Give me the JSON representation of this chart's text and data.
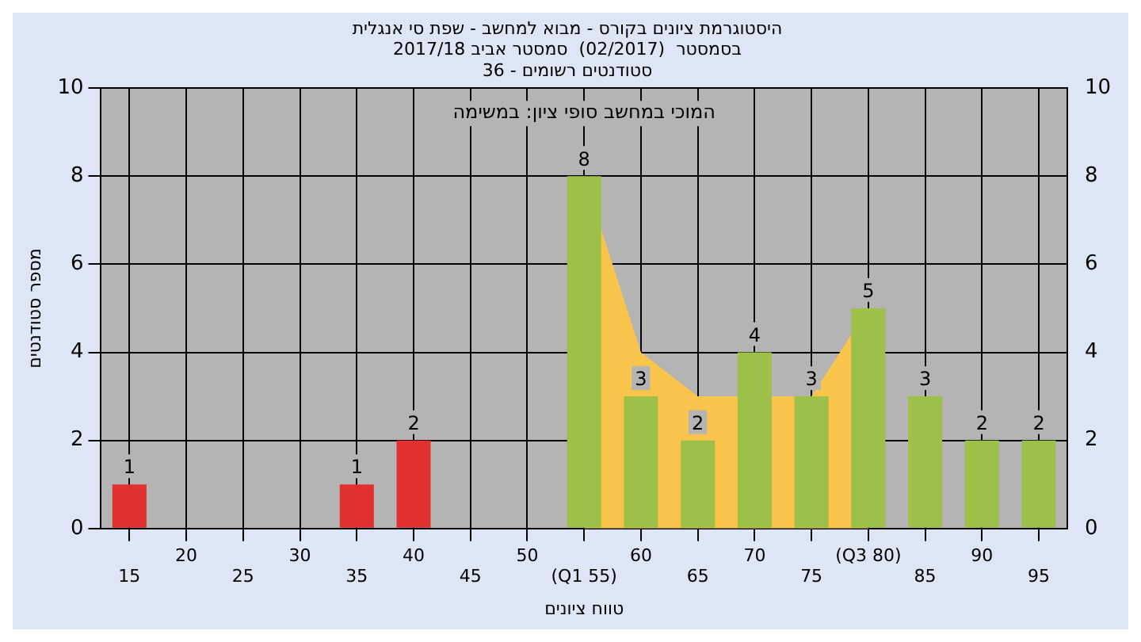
{
  "chart_data": {
    "type": "bar",
    "title": [
      "היסטוגרמת ציונים בקורס - מבוא למחשב - שפת סי אנגלית",
      "בסמסטר  (02/2017)  סמסטר אביב 2017/18",
      "סטודנטים רשומים - 36"
    ],
    "xlabel": "טווח ציונים",
    "ylabel": "מספר סטודנטים",
    "annotations": [
      "המוכי במחשב סופי ציון: במשימה"
    ],
    "categories": [
      "15",
      "20",
      "25",
      "30",
      "35",
      "40",
      "45",
      "50",
      "(Q1 55)",
      "60",
      "65",
      "70",
      "75",
      "(Q3 80)",
      "85",
      "90",
      "95"
    ],
    "series": [
      {
        "colors": [
          "#e03030",
          "#e03030",
          "#e03030",
          "#e03030",
          "#e03030",
          "#e03030",
          "#e03030",
          "#e03030",
          "#9cc048",
          "#9cc048",
          "#9cc048",
          "#9cc048",
          "#9cc048",
          "#9cc048",
          "#9cc048",
          "#9cc048",
          "#9cc048"
        ],
        "values": [
          1,
          0,
          0,
          0,
          1,
          2,
          0,
          0,
          8,
          3,
          2,
          4,
          3,
          5,
          3,
          2,
          2
        ],
        "value_labels": [
          "1",
          null,
          null,
          null,
          "1",
          "2",
          null,
          null,
          "8",
          "3",
          "2",
          "4",
          "3",
          "5",
          "3",
          "2",
          "2"
        ]
      },
      {
        "type": "area",
        "color": "#f8c44c",
        "values": [
          null,
          null,
          null,
          null,
          null,
          null,
          null,
          null,
          8,
          4,
          3,
          null,
          3,
          5,
          null,
          null,
          null
        ]
      }
    ],
    "ylim": [
      0,
      10
    ],
    "yticks": [
      0,
      2,
      4,
      6,
      8,
      10
    ],
    "y2lim": [
      0,
      10
    ],
    "y2ticks": [
      0,
      2,
      4,
      6,
      8,
      10
    ],
    "grid": true,
    "legend": false
  }
}
